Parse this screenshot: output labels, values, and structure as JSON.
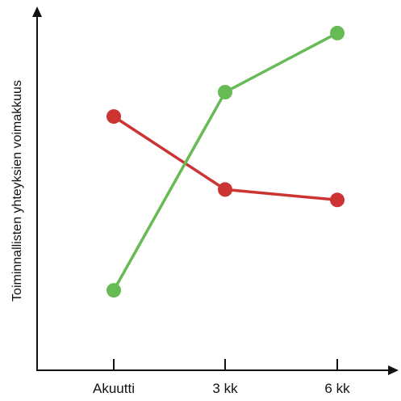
{
  "chart_data": {
    "type": "line",
    "title": "",
    "xlabel": "",
    "ylabel": "Toiminnallisten yhteyksien voimakkuus",
    "categories": [
      "Akuutti",
      "3 kk",
      "6 kk"
    ],
    "ylim": [
      0,
      10
    ],
    "y_ticks_shown": false,
    "grid": false,
    "legend": "none",
    "series": [
      {
        "color": "#cc3333",
        "values": [
          7.3,
          5.2,
          4.9
        ]
      },
      {
        "color": "#66bb55",
        "values": [
          2.3,
          8.0,
          9.7
        ]
      }
    ]
  }
}
